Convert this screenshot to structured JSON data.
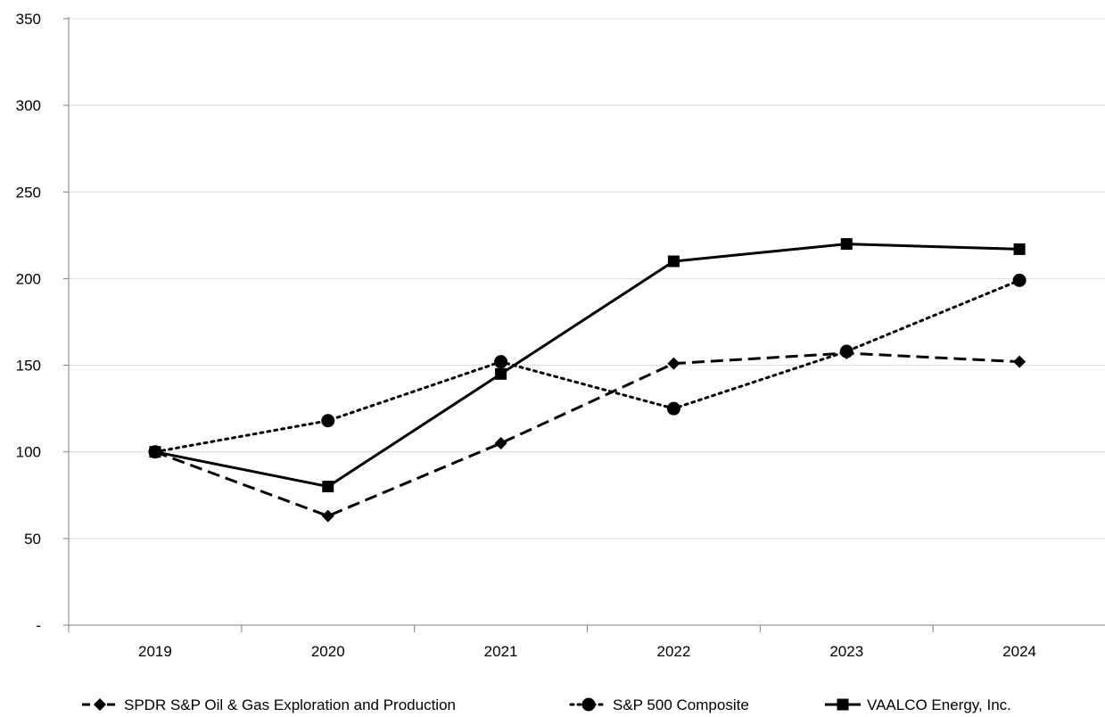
{
  "chart_data": {
    "type": "line",
    "title": "",
    "xlabel": "",
    "ylabel": "",
    "categories": [
      "2019",
      "2020",
      "2021",
      "2022",
      "2023",
      "2024"
    ],
    "ylim": [
      0,
      350
    ],
    "yticks": [
      {
        "value": 0,
        "label": "-"
      },
      {
        "value": 50,
        "label": "50"
      },
      {
        "value": 100,
        "label": "100"
      },
      {
        "value": 150,
        "label": "150"
      },
      {
        "value": 200,
        "label": "200"
      },
      {
        "value": 250,
        "label": "250"
      },
      {
        "value": 300,
        "label": "300"
      },
      {
        "value": 350,
        "label": "350"
      }
    ],
    "grid": "horizontal",
    "legend_position": "bottom",
    "series": [
      {
        "name": "SPDR S&P Oil & Gas Exploration and Production",
        "values": [
          100,
          63,
          105,
          151,
          157,
          152
        ],
        "line_style": "dashed",
        "marker": "diamond",
        "color": "#000000"
      },
      {
        "name": "S&P 500 Composite",
        "values": [
          100,
          118,
          152,
          125,
          158,
          199
        ],
        "line_style": "dotted",
        "marker": "circle",
        "color": "#000000"
      },
      {
        "name": "VAALCO Energy, Inc.",
        "values": [
          100,
          80,
          145,
          210,
          220,
          217
        ],
        "line_style": "solid",
        "marker": "square",
        "color": "#000000"
      }
    ]
  }
}
